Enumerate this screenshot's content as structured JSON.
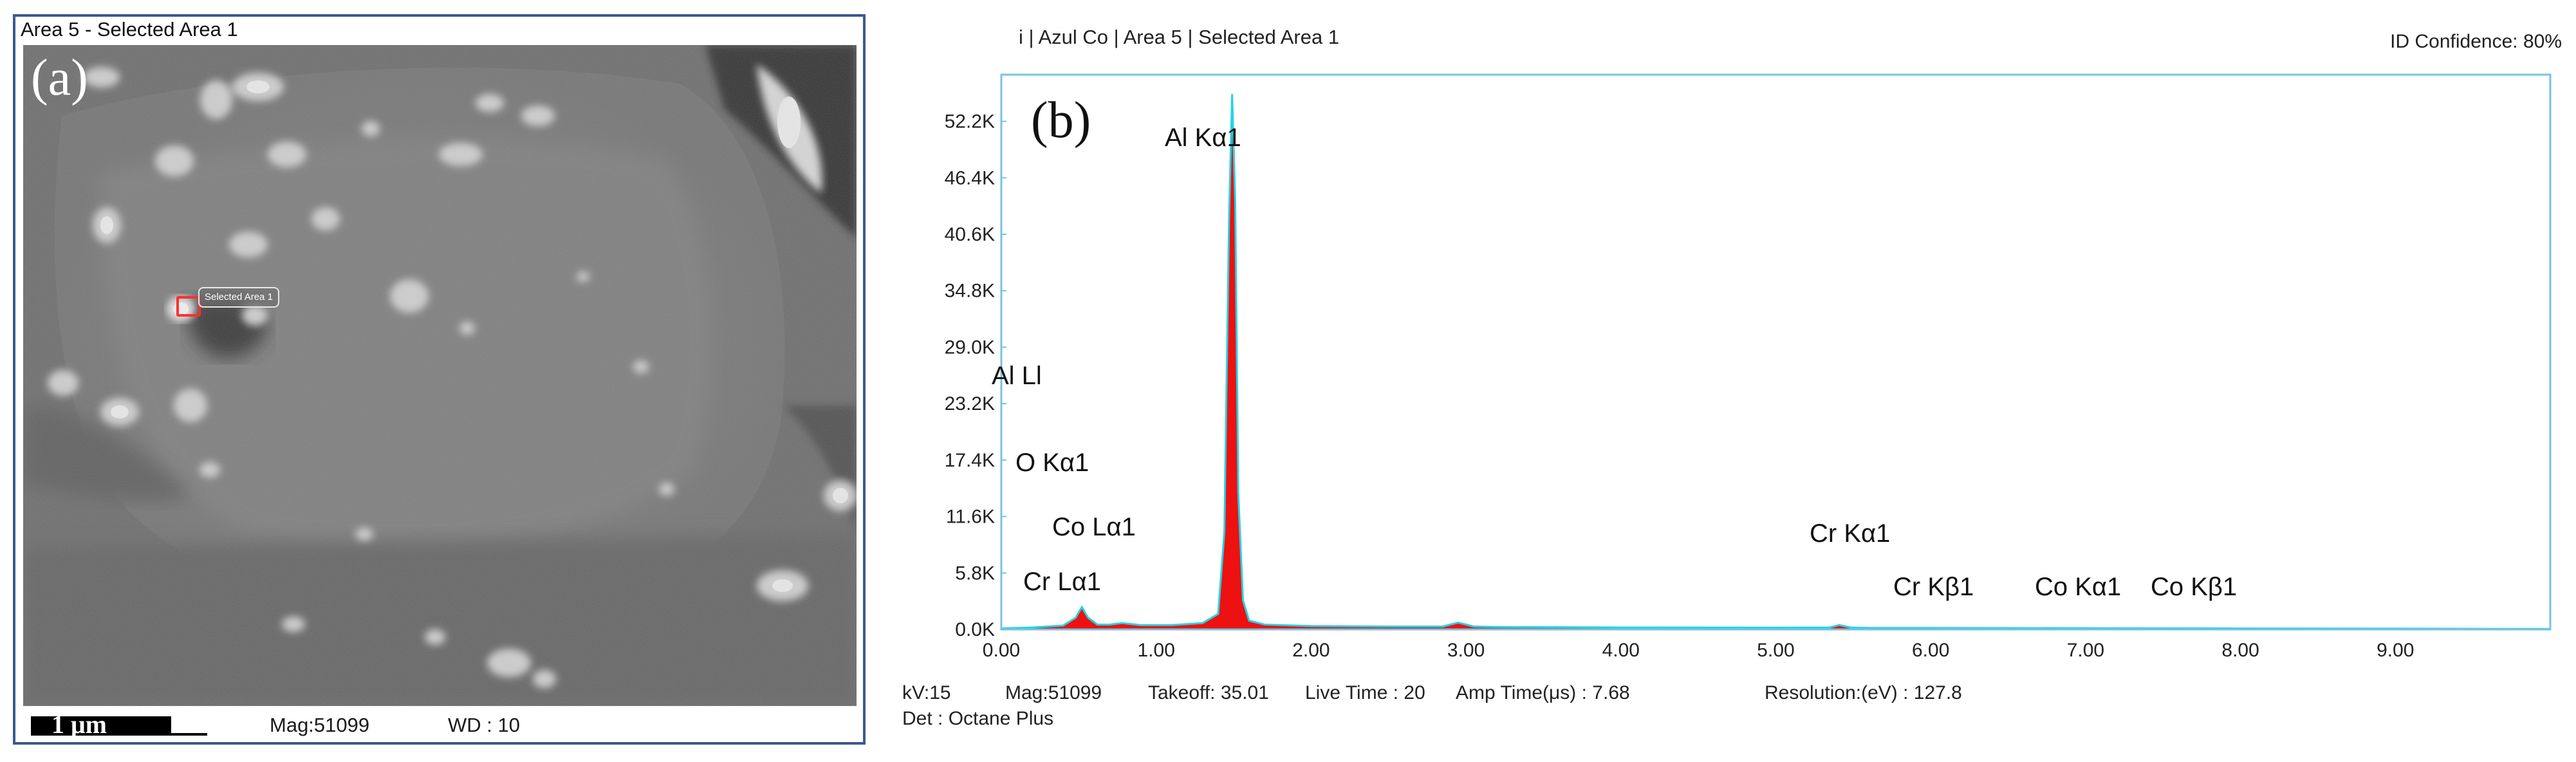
{
  "sem": {
    "title": "Area 5 - Selected Area 1",
    "panel_label": "(a)",
    "selection_label": "Selected Area 1",
    "scale_bar": "1 μm",
    "mag": "Mag:51099",
    "wd": "WD : 10"
  },
  "eds": {
    "header": "i | Azul Co | Area 5 | Selected Area 1",
    "confidence": "ID Confidence: 80%",
    "panel_label": "(b)",
    "info": {
      "kv": "kV:15",
      "mag": "Mag:51099",
      "takeoff": "Takeoff: 35.01",
      "live_time": "Live Time : 20",
      "amp_time": "Amp Time(μs) : 7.68",
      "resolution": "Resolution:(eV) : 127.8"
    },
    "detector": "Det : Octane Plus",
    "peak_labels": {
      "al_ka1": "Al Kα1",
      "al_ll": "Al Ll",
      "o_ka1": "O  Kα1",
      "co_la1": "Co Lα1",
      "cr_la1": "Cr Lα1",
      "cr_ka1": "Cr Kα1",
      "cr_kb1": "Cr Kβ1",
      "co_ka1": "Co Kα1",
      "co_kb1": "Co Kβ1"
    },
    "colors": {
      "fill": "#ee1111",
      "outline": "#22d3e6",
      "frame": "#79c3e0"
    }
  },
  "chart_data": {
    "type": "area",
    "xlabel": "",
    "ylabel": "",
    "x_ticks": [
      "0.00",
      "1.00",
      "2.00",
      "3.00",
      "4.00",
      "5.00",
      "6.00",
      "7.00",
      "8.00",
      "9.00"
    ],
    "y_ticks": [
      "0.0K",
      "5.8K",
      "11.6K",
      "17.4K",
      "23.2K",
      "29.0K",
      "34.8K",
      "40.6K",
      "46.4K",
      "52.2K"
    ],
    "xlim": [
      0,
      10
    ],
    "ylim": [
      0,
      57000
    ],
    "series": [
      {
        "x": [
          0.0,
          0.2,
          0.4,
          0.48,
          0.52,
          0.56,
          0.62,
          0.7,
          0.78,
          0.9,
          1.1,
          1.3,
          1.4,
          1.44,
          1.47,
          1.49,
          1.51,
          1.53,
          1.56,
          1.6,
          1.7,
          2.0,
          2.5,
          2.85,
          2.95,
          3.05,
          3.2,
          4.0,
          5.0,
          5.35,
          5.41,
          5.48,
          5.6,
          6.0,
          7.0,
          8.0,
          9.0,
          10.0
        ],
        "values": [
          100,
          200,
          400,
          1200,
          2300,
          1200,
          500,
          500,
          650,
          450,
          450,
          650,
          1600,
          10000,
          42000,
          55000,
          44000,
          14000,
          3000,
          900,
          500,
          350,
          300,
          300,
          700,
          300,
          250,
          200,
          180,
          200,
          450,
          200,
          150,
          150,
          120,
          100,
          80,
          50
        ]
      }
    ],
    "grid": false
  }
}
